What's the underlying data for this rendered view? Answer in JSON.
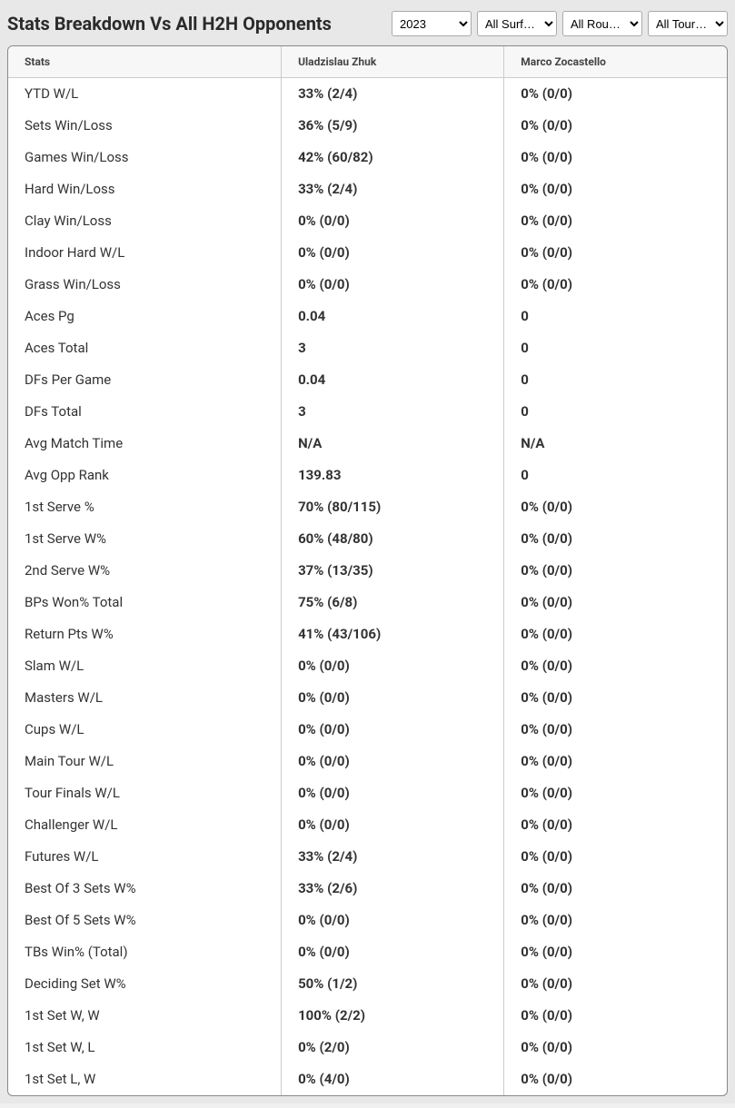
{
  "title": "Stats Breakdown Vs All H2H Opponents",
  "filters": {
    "year": {
      "selected": "2023",
      "options": [
        "2023"
      ]
    },
    "surface": {
      "selected": "All Surf…",
      "options": [
        "All Surf…"
      ]
    },
    "round": {
      "selected": "All Rou…",
      "options": [
        "All Rou…"
      ]
    },
    "tour": {
      "selected": "All Tour…",
      "options": [
        "All Tour…"
      ]
    }
  },
  "columns": {
    "stats": "Stats",
    "player1": "Uladzislau Zhuk",
    "player2": "Marco Zocastello"
  },
  "rows": [
    {
      "label": "YTD W/L",
      "p1": "33% (2/4)",
      "p2": "0% (0/0)"
    },
    {
      "label": "Sets Win/Loss",
      "p1": "36% (5/9)",
      "p2": "0% (0/0)"
    },
    {
      "label": "Games Win/Loss",
      "p1": "42% (60/82)",
      "p2": "0% (0/0)"
    },
    {
      "label": "Hard Win/Loss",
      "p1": "33% (2/4)",
      "p2": "0% (0/0)"
    },
    {
      "label": "Clay Win/Loss",
      "p1": "0% (0/0)",
      "p2": "0% (0/0)"
    },
    {
      "label": "Indoor Hard W/L",
      "p1": "0% (0/0)",
      "p2": "0% (0/0)"
    },
    {
      "label": "Grass Win/Loss",
      "p1": "0% (0/0)",
      "p2": "0% (0/0)"
    },
    {
      "label": "Aces Pg",
      "p1": "0.04",
      "p2": "0"
    },
    {
      "label": "Aces Total",
      "p1": "3",
      "p2": "0"
    },
    {
      "label": "DFs Per Game",
      "p1": "0.04",
      "p2": "0"
    },
    {
      "label": "DFs Total",
      "p1": "3",
      "p2": "0"
    },
    {
      "label": "Avg Match Time",
      "p1": "N/A",
      "p2": "N/A"
    },
    {
      "label": "Avg Opp Rank",
      "p1": "139.83",
      "p2": "0"
    },
    {
      "label": "1st Serve %",
      "p1": "70% (80/115)",
      "p2": "0% (0/0)"
    },
    {
      "label": "1st Serve W%",
      "p1": "60% (48/80)",
      "p2": "0% (0/0)"
    },
    {
      "label": "2nd Serve W%",
      "p1": "37% (13/35)",
      "p2": "0% (0/0)"
    },
    {
      "label": "BPs Won% Total",
      "p1": "75% (6/8)",
      "p2": "0% (0/0)"
    },
    {
      "label": "Return Pts W%",
      "p1": "41% (43/106)",
      "p2": "0% (0/0)"
    },
    {
      "label": "Slam W/L",
      "p1": "0% (0/0)",
      "p2": "0% (0/0)"
    },
    {
      "label": "Masters W/L",
      "p1": "0% (0/0)",
      "p2": "0% (0/0)"
    },
    {
      "label": "Cups W/L",
      "p1": "0% (0/0)",
      "p2": "0% (0/0)"
    },
    {
      "label": "Main Tour W/L",
      "p1": "0% (0/0)",
      "p2": "0% (0/0)"
    },
    {
      "label": "Tour Finals W/L",
      "p1": "0% (0/0)",
      "p2": "0% (0/0)"
    },
    {
      "label": "Challenger W/L",
      "p1": "0% (0/0)",
      "p2": "0% (0/0)"
    },
    {
      "label": "Futures W/L",
      "p1": "33% (2/4)",
      "p2": "0% (0/0)"
    },
    {
      "label": "Best Of 3 Sets W%",
      "p1": "33% (2/6)",
      "p2": "0% (0/0)"
    },
    {
      "label": "Best Of 5 Sets W%",
      "p1": "0% (0/0)",
      "p2": "0% (0/0)"
    },
    {
      "label": "TBs Win% (Total)",
      "p1": "0% (0/0)",
      "p2": "0% (0/0)"
    },
    {
      "label": "Deciding Set W%",
      "p1": "50% (1/2)",
      "p2": "0% (0/0)"
    },
    {
      "label": "1st Set W, W",
      "p1": "100% (2/2)",
      "p2": "0% (0/0)"
    },
    {
      "label": "1st Set W, L",
      "p1": "0% (2/0)",
      "p2": "0% (0/0)"
    },
    {
      "label": "1st Set L, W",
      "p1": "0% (4/0)",
      "p2": "0% (0/0)"
    }
  ]
}
